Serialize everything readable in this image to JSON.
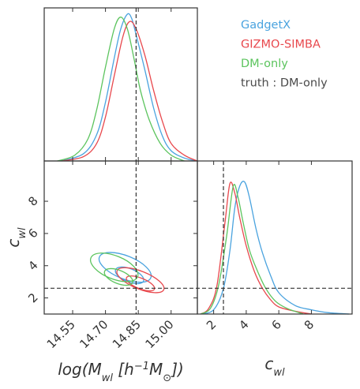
{
  "chart_data": {
    "type": "corner",
    "parameters": [
      {
        "name": "logM",
        "label": "log(M_wl [h^-1 M_⊙])",
        "range": [
          14.42,
          15.12
        ],
        "ticks": [
          "14.55",
          "14.70",
          "14.85",
          "15.00"
        ],
        "truth": 14.84
      },
      {
        "name": "c_wl",
        "label": "c_wl",
        "range": [
          1.0,
          10.5
        ],
        "ticks": [
          "2",
          "4",
          "6",
          "8"
        ],
        "truth": 2.6
      }
    ],
    "series": [
      {
        "name": "GadgetX",
        "color": "#4aa3df",
        "logM_hist": [
          [
            14.5,
            0.0
          ],
          [
            14.6,
            0.05
          ],
          [
            14.66,
            0.18
          ],
          [
            14.7,
            0.4
          ],
          [
            14.74,
            0.7
          ],
          [
            14.77,
            0.9
          ],
          [
            14.8,
            1.0
          ],
          [
            14.82,
            0.97
          ],
          [
            14.84,
            0.86
          ],
          [
            14.88,
            0.62
          ],
          [
            14.92,
            0.36
          ],
          [
            14.96,
            0.17
          ],
          [
            15.0,
            0.07
          ],
          [
            15.06,
            0.02
          ],
          [
            15.12,
            0.0
          ]
        ],
        "cwl_hist": [
          [
            1.2,
            0.0
          ],
          [
            2.0,
            0.03
          ],
          [
            2.6,
            0.18
          ],
          [
            3.0,
            0.45
          ],
          [
            3.3,
            0.75
          ],
          [
            3.6,
            0.9
          ],
          [
            3.9,
            0.93
          ],
          [
            4.2,
            0.82
          ],
          [
            4.6,
            0.6
          ],
          [
            5.0,
            0.43
          ],
          [
            5.5,
            0.27
          ],
          [
            6.0,
            0.15
          ],
          [
            7.0,
            0.06
          ],
          [
            8.0,
            0.03
          ],
          [
            9.0,
            0.01
          ],
          [
            10.3,
            0.0
          ]
        ],
        "contours": [
          {
            "cx": 14.79,
            "cy": 3.9,
            "rx": 0.11,
            "ry": 1.3,
            "level": "outer"
          },
          {
            "cx": 14.81,
            "cy": 3.4,
            "rx": 0.06,
            "ry": 0.75,
            "level": "inner"
          }
        ]
      },
      {
        "name": "GIZMO-SIMBA",
        "color": "#e8484d",
        "logM_hist": [
          [
            14.5,
            0.0
          ],
          [
            14.6,
            0.03
          ],
          [
            14.66,
            0.12
          ],
          [
            14.7,
            0.3
          ],
          [
            14.74,
            0.58
          ],
          [
            14.78,
            0.85
          ],
          [
            14.81,
            0.95
          ],
          [
            14.84,
            0.9
          ],
          [
            14.88,
            0.72
          ],
          [
            14.92,
            0.48
          ],
          [
            14.96,
            0.27
          ],
          [
            15.0,
            0.12
          ],
          [
            15.06,
            0.04
          ],
          [
            15.12,
            0.0
          ]
        ],
        "cwl_hist": [
          [
            1.2,
            0.0
          ],
          [
            1.7,
            0.04
          ],
          [
            2.2,
            0.2
          ],
          [
            2.7,
            0.65
          ],
          [
            3.0,
            0.92
          ],
          [
            3.3,
            0.85
          ],
          [
            3.6,
            0.68
          ],
          [
            4.0,
            0.48
          ],
          [
            4.5,
            0.3
          ],
          [
            5.0,
            0.18
          ],
          [
            5.5,
            0.1
          ],
          [
            6.0,
            0.05
          ],
          [
            7.0,
            0.02
          ],
          [
            8.0,
            0.0
          ]
        ],
        "contours": [
          {
            "cx": 14.86,
            "cy": 3.1,
            "rx": 0.1,
            "ry": 1.0,
            "level": "outer"
          },
          {
            "cx": 14.86,
            "cy": 2.9,
            "rx": 0.06,
            "ry": 0.6,
            "level": "inner"
          }
        ]
      },
      {
        "name": "DM-only",
        "color": "#5cc45e",
        "logM_hist": [
          [
            14.48,
            0.0
          ],
          [
            14.56,
            0.04
          ],
          [
            14.62,
            0.15
          ],
          [
            14.66,
            0.35
          ],
          [
            14.7,
            0.64
          ],
          [
            14.74,
            0.9
          ],
          [
            14.77,
            0.98
          ],
          [
            14.8,
            0.9
          ],
          [
            14.83,
            0.7
          ],
          [
            14.86,
            0.48
          ],
          [
            14.9,
            0.28
          ],
          [
            14.95,
            0.12
          ],
          [
            15.0,
            0.04
          ],
          [
            15.06,
            0.0
          ]
        ],
        "cwl_hist": [
          [
            1.2,
            0.0
          ],
          [
            1.8,
            0.04
          ],
          [
            2.3,
            0.2
          ],
          [
            2.8,
            0.55
          ],
          [
            3.2,
            0.9
          ],
          [
            3.5,
            0.82
          ],
          [
            3.8,
            0.65
          ],
          [
            4.2,
            0.45
          ],
          [
            4.7,
            0.3
          ],
          [
            5.2,
            0.18
          ],
          [
            5.8,
            0.09
          ],
          [
            6.5,
            0.04
          ],
          [
            7.5,
            0.0
          ]
        ],
        "contours": [
          {
            "cx": 14.74,
            "cy": 3.9,
            "rx": 0.1,
            "ry": 1.3,
            "level": "outer"
          },
          {
            "cx": 14.76,
            "cy": 3.3,
            "rx": 0.06,
            "ry": 0.75,
            "level": "inner"
          }
        ]
      }
    ],
    "legend": {
      "placement": "top-right",
      "entries": [
        "GadgetX",
        "GIZMO-SIMBA",
        "DM-only"
      ],
      "truth_label": "truth : DM-only",
      "truth_color": "#4a4a4a"
    },
    "xlabel_1": "log(M_wl [h^-1 M_⊙])",
    "xlabel_2": "c_wl",
    "ylabel": "c_wl"
  }
}
